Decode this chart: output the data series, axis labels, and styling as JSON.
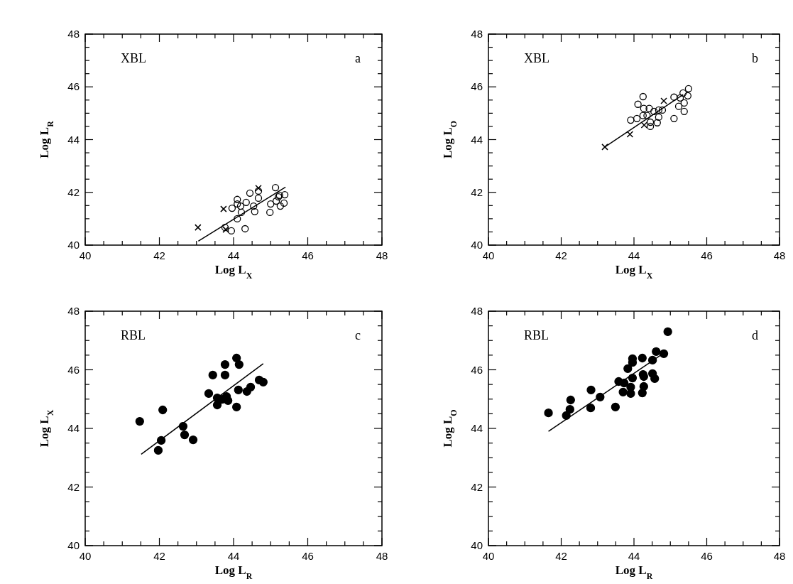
{
  "chart_data": [
    {
      "type": "scatter",
      "xlabel": "Log L$_{X}$",
      "ylabel": "Log L$_{R}$",
      "annotations": [
        "XBL",
        "a"
      ],
      "xlim": [
        40,
        48
      ],
      "ylim": [
        40,
        48
      ],
      "xticks": [
        40,
        {
          "value": 40.5,
          "label": null
        },
        {
          "value": 41,
          "label": null
        },
        {
          "value": 41.5,
          "label": null
        },
        42,
        {
          "value": 42.5,
          "label": null
        },
        {
          "value": 43,
          "label": null
        },
        {
          "value": 43.5,
          "label": null
        },
        44,
        {
          "value": 44.5,
          "label": null
        },
        {
          "value": 45,
          "label": null
        },
        {
          "value": 45.5,
          "label": null
        },
        46,
        {
          "value": 46.5,
          "label": null
        },
        {
          "value": 47,
          "label": null
        },
        {
          "value": 47.5,
          "label": null
        },
        48
      ],
      "yticks": [
        40,
        {
          "value": 40.5,
          "label": null
        },
        {
          "value": 41,
          "label": null
        },
        {
          "value": 41.5,
          "label": null
        },
        42,
        {
          "value": 42.5,
          "label": null
        },
        {
          "value": 43,
          "label": null
        },
        {
          "value": 43.5,
          "label": null
        },
        44,
        {
          "value": 44.5,
          "label": null
        },
        {
          "value": 45,
          "label": null
        },
        {
          "value": 45.5,
          "label": null
        },
        46,
        {
          "value": 46.5,
          "label": null
        },
        {
          "value": 47,
          "label": null
        },
        {
          "value": 47.5,
          "label": null
        },
        48
      ],
      "grid": false,
      "series": [
        {
          "type": "scatter",
          "marker": "circle",
          "color": "#000000",
          "x": [
            44.1,
            44.1,
            43.96,
            44.19,
            44.34,
            44.44,
            44.67,
            44.67,
            44.54,
            44.57,
            44.21,
            44.1,
            43.77,
            43.94,
            44.31,
            45.13,
            45.0,
            44.98,
            45.15,
            45.24,
            45.38,
            45.36,
            45.26,
            45.21
          ],
          "values": [
            41.73,
            41.56,
            41.4,
            41.48,
            41.62,
            41.97,
            42.05,
            41.78,
            41.48,
            41.27,
            41.24,
            41.0,
            40.67,
            40.54,
            40.62,
            42.18,
            41.56,
            41.24,
            41.67,
            41.89,
            41.91,
            41.59,
            41.48,
            41.83
          ]
        },
        {
          "type": "scatter",
          "marker": "cross",
          "color": "#000000",
          "x": [
            43.04,
            43.73,
            44.67,
            43.79
          ],
          "values": [
            40.67,
            41.37,
            42.16,
            40.59
          ]
        },
        {
          "type": "line",
          "marker": "none",
          "color": "#000000",
          "x": [
            43.05,
            45.4
          ],
          "values": [
            40.15,
            42.2
          ]
        }
      ]
    },
    {
      "type": "scatter",
      "xlabel": "Log L$_{X}$",
      "ylabel": "Log L$_{O}$",
      "annotations": [
        "XBL",
        "b"
      ],
      "xlim": [
        40,
        48
      ],
      "ylim": [
        40,
        48
      ],
      "xticks": [
        40,
        {
          "value": 40.5,
          "label": null
        },
        {
          "value": 41,
          "label": null
        },
        {
          "value": 41.5,
          "label": null
        },
        42,
        {
          "value": 42.5,
          "label": null
        },
        {
          "value": 43,
          "label": null
        },
        {
          "value": 43.5,
          "label": null
        },
        44,
        {
          "value": 44.5,
          "label": null
        },
        {
          "value": 45,
          "label": null
        },
        {
          "value": 45.5,
          "label": null
        },
        46,
        {
          "value": 46.5,
          "label": null
        },
        {
          "value": 47,
          "label": null
        },
        {
          "value": 47.5,
          "label": null
        },
        48
      ],
      "yticks": [
        40,
        {
          "value": 40.5,
          "label": null
        },
        {
          "value": 41,
          "label": null
        },
        {
          "value": 41.5,
          "label": null
        },
        42,
        {
          "value": 42.5,
          "label": null
        },
        {
          "value": 43,
          "label": null
        },
        {
          "value": 43.5,
          "label": null
        },
        44,
        {
          "value": 44.5,
          "label": null
        },
        {
          "value": 45,
          "label": null
        },
        {
          "value": 45.5,
          "label": null
        },
        46,
        {
          "value": 46.5,
          "label": null
        },
        {
          "value": 47,
          "label": null
        },
        {
          "value": 47.5,
          "label": null
        },
        48
      ],
      "grid": false,
      "series": [
        {
          "type": "scatter",
          "marker": "circle",
          "color": "#000000",
          "x": [
            43.91,
            44.08,
            44.25,
            44.11,
            44.25,
            44.27,
            44.42,
            44.55,
            44.68,
            44.78,
            44.36,
            44.68,
            44.64,
            44.45,
            44.45,
            45.1,
            45.1,
            45.27,
            45.35,
            45.5,
            45.48,
            45.38,
            45.23,
            45.38
          ],
          "values": [
            44.74,
            44.8,
            44.91,
            45.34,
            45.63,
            45.18,
            45.18,
            45.07,
            45.12,
            45.12,
            44.91,
            44.85,
            44.64,
            44.66,
            44.5,
            44.8,
            45.61,
            45.58,
            45.77,
            45.93,
            45.66,
            45.39,
            45.26,
            45.07
          ]
        },
        {
          "type": "scatter",
          "marker": "cross",
          "color": "#000000",
          "x": [
            43.2,
            43.89,
            44.28,
            44.82
          ],
          "values": [
            43.72,
            44.2,
            44.55,
            45.47
          ]
        },
        {
          "type": "line",
          "marker": "none",
          "color": "#000000",
          "x": [
            43.2,
            45.35
          ],
          "values": [
            43.72,
            45.71
          ]
        }
      ]
    },
    {
      "type": "scatter",
      "xlabel": "Log L$_{R}$",
      "ylabel": "Log L$_{X}$",
      "annotations": [
        "RBL",
        "c"
      ],
      "xlim": [
        40,
        48
      ],
      "ylim": [
        40,
        48
      ],
      "xticks": [
        40,
        {
          "value": 40.5,
          "label": null
        },
        {
          "value": 41,
          "label": null
        },
        {
          "value": 41.5,
          "label": null
        },
        42,
        {
          "value": 42.5,
          "label": null
        },
        {
          "value": 43,
          "label": null
        },
        {
          "value": 43.5,
          "label": null
        },
        44,
        {
          "value": 44.5,
          "label": null
        },
        {
          "value": 45,
          "label": null
        },
        {
          "value": 45.5,
          "label": null
        },
        46,
        {
          "value": 46.5,
          "label": null
        },
        {
          "value": 47,
          "label": null
        },
        {
          "value": 47.5,
          "label": null
        },
        48
      ],
      "yticks": [
        40,
        {
          "value": 40.5,
          "label": null
        },
        {
          "value": 41,
          "label": null
        },
        {
          "value": 41.5,
          "label": null
        },
        42,
        {
          "value": 42.5,
          "label": null
        },
        {
          "value": 43,
          "label": null
        },
        {
          "value": 43.5,
          "label": null
        },
        44,
        {
          "value": 44.5,
          "label": null
        },
        {
          "value": 45,
          "label": null
        },
        {
          "value": 45.5,
          "label": null
        },
        46,
        {
          "value": 46.5,
          "label": null
        },
        {
          "value": 47,
          "label": null
        },
        {
          "value": 47.5,
          "label": null
        },
        48
      ],
      "grid": false,
      "series": [
        {
          "type": "scatter",
          "marker": "circle",
          "color": "#000000",
          "x": [
            44.08,
            44.15,
            43.77,
            43.44,
            43.77,
            44.69,
            44.8,
            44.46,
            44.36,
            44.13,
            43.33,
            43.56,
            43.81,
            43.85,
            43.69,
            43.56,
            44.08,
            42.09,
            41.47,
            42.64,
            42.68,
            42.91,
            42.05,
            41.97
          ],
          "values": [
            46.4,
            46.18,
            46.18,
            45.82,
            45.82,
            45.65,
            45.58,
            45.41,
            45.26,
            45.31,
            45.19,
            45.04,
            45.09,
            44.95,
            44.99,
            44.8,
            44.73,
            44.63,
            44.24,
            44.07,
            43.78,
            43.61,
            43.59,
            43.25
          ]
        },
        {
          "type": "line",
          "marker": "none",
          "color": "#000000",
          "x": [
            41.51,
            44.8
          ],
          "values": [
            43.12,
            46.21
          ]
        }
      ]
    },
    {
      "type": "scatter",
      "xlabel": "Log L$_{R}$",
      "ylabel": "Log L$_{O}$",
      "annotations": [
        "RBL",
        "d"
      ],
      "xlim": [
        40,
        48
      ],
      "ylim": [
        40,
        48
      ],
      "xticks": [
        40,
        {
          "value": 40.5,
          "label": null
        },
        {
          "value": 41,
          "label": null
        },
        {
          "value": 41.5,
          "label": null
        },
        42,
        {
          "value": 42.5,
          "label": null
        },
        {
          "value": 43,
          "label": null
        },
        {
          "value": 43.5,
          "label": null
        },
        44,
        {
          "value": 44.5,
          "label": null
        },
        {
          "value": 45,
          "label": null
        },
        {
          "value": 45.5,
          "label": null
        },
        46,
        {
          "value": 46.5,
          "label": null
        },
        {
          "value": 47,
          "label": null
        },
        {
          "value": 47.5,
          "label": null
        },
        48
      ],
      "yticks": [
        40,
        {
          "value": 40.5,
          "label": null
        },
        {
          "value": 41,
          "label": null
        },
        {
          "value": 41.5,
          "label": null
        },
        42,
        {
          "value": 42.5,
          "label": null
        },
        {
          "value": 43,
          "label": null
        },
        {
          "value": 43.5,
          "label": null
        },
        44,
        {
          "value": 44.5,
          "label": null
        },
        {
          "value": 45,
          "label": null
        },
        {
          "value": 45.5,
          "label": null
        },
        46,
        {
          "value": 46.5,
          "label": null
        },
        {
          "value": 47,
          "label": null
        },
        {
          "value": 47.5,
          "label": null
        },
        48
      ],
      "grid": false,
      "series": [
        {
          "type": "scatter",
          "marker": "circle",
          "color": "#000000",
          "x": [
            44.93,
            44.61,
            44.82,
            44.51,
            44.23,
            43.96,
            43.96,
            43.83,
            43.96,
            44.25,
            44.27,
            44.51,
            44.57,
            43.58,
            43.73,
            43.91,
            43.7,
            43.91,
            44.27,
            44.23,
            43.07,
            42.82,
            43.49,
            42.81,
            42.26,
            42.24,
            42.14,
            41.65
          ],
          "values": [
            47.3,
            46.62,
            46.55,
            46.33,
            46.4,
            46.38,
            46.25,
            46.04,
            45.72,
            45.84,
            45.77,
            45.87,
            45.7,
            45.6,
            45.55,
            45.41,
            45.24,
            45.19,
            45.43,
            45.21,
            45.07,
            45.31,
            44.73,
            44.7,
            44.97,
            44.65,
            44.44,
            44.53
          ]
        },
        {
          "type": "line",
          "marker": "none",
          "color": "#000000",
          "x": [
            41.65,
            44.82
          ],
          "values": [
            43.9,
            46.57
          ]
        }
      ]
    }
  ]
}
